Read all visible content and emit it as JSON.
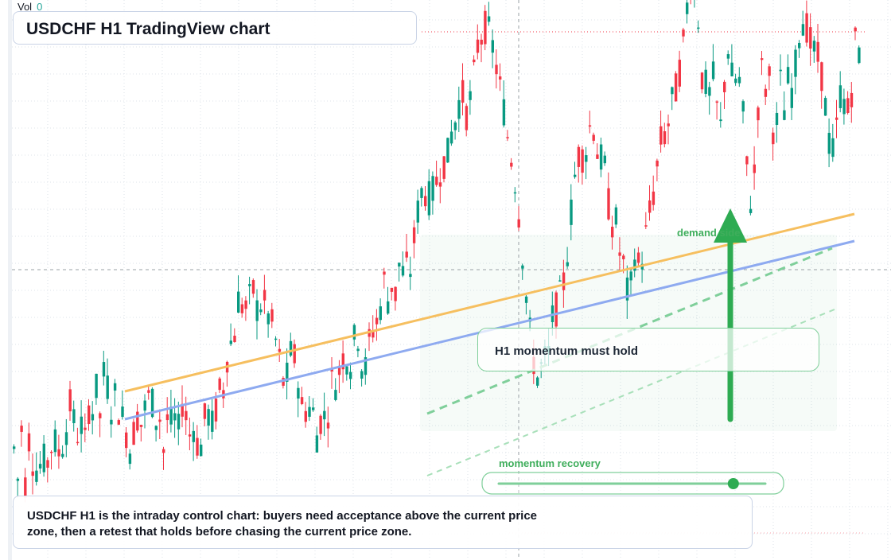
{
  "header": {
    "vol_label": "Vol",
    "vol_value": "0"
  },
  "title": "USDCHF H1 TradingView chart",
  "callout": "H1 momentum must hold",
  "demand_label": "demand side",
  "momentum_label": "momentum recovery",
  "description": "USDCHF H1 is the intraday control chart: buyers need acceptance above the current price zone, then a retest that holds before chasing the current price zone.",
  "colors": {
    "up": "#089981",
    "down": "#f23645",
    "grid": "#dde3ea",
    "orange_line": "#f6bf5f",
    "blue_line": "#8eaaf0",
    "green": "#2eab52",
    "green_soft": "#7fcf9a"
  },
  "momentum_slider": {
    "level": 0.88
  },
  "chart_data": {
    "type": "candlestick",
    "title": "",
    "price_ticks_visible": false,
    "grid": true,
    "candles": [
      [
        1.4,
        0.4,
        2.2,
        0.0
      ],
      [
        2.1,
        0.7,
        0.8,
        0.9
      ],
      [
        1.1,
        0.9,
        2.0,
        1.1
      ],
      [
        1.5,
        1.6,
        2.9,
        2.4
      ],
      [
        1.8,
        2.2,
        1.5,
        2.7
      ],
      [
        2.6,
        3.3,
        2.3,
        4.0
      ],
      [
        3.2,
        2.5,
        3.3,
        2.3
      ],
      [
        2.4,
        1.5,
        1.3,
        2.7
      ],
      [
        2.0,
        2.5,
        3.0,
        3.0
      ],
      [
        2.3,
        2.5,
        1.3,
        2.3
      ],
      [
        2.2,
        2.3,
        1.9,
        3.1
      ],
      [
        2.2,
        1.7,
        2.3,
        1.1
      ],
      [
        1.8,
        2.8,
        2.1,
        2.2
      ],
      [
        3.3,
        2.9,
        4.2,
        4.7
      ],
      [
        4.9,
        6.1,
        5.9,
        5.8
      ],
      [
        6.1,
        6.4,
        5.7,
        6.0
      ],
      [
        5.9,
        5.4,
        5.2,
        4.5
      ],
      [
        3.9,
        3.1,
        4.3,
        4.5
      ],
      [
        3.8,
        2.7,
        2.6,
        2.7
      ],
      [
        2.6,
        1.8,
        2.3,
        2.4
      ],
      [
        2.6,
        3.7,
        3.4,
        4.0
      ],
      [
        4.4,
        4.2,
        4.0,
        5.4
      ],
      [
        4.5,
        3.5,
        4.5,
        5.1
      ],
      [
        5.3,
        5.6,
        6.8,
        6.0
      ],
      [
        6.6,
        6.2,
        7.2,
        6.9
      ],
      [
        7.1,
        7.0,
        8.2,
        9.1
      ],
      [
        9.6,
        9.4,
        9.2,
        9.7
      ],
      [
        9.9,
        10.5,
        10.3,
        11.2
      ],
      [
        11.5,
        12.2,
        12.6,
        11.9
      ],
      [
        12.3,
        13.1,
        14.1,
        14.4
      ],
      [
        14.7,
        14.4,
        13.9,
        13.2
      ],
      [
        12.5,
        11.8,
        10.8,
        10.3
      ],
      [
        9.3,
        8.1,
        6.6,
        5.3
      ],
      [
        4.3,
        3.6,
        3.9,
        4.2
      ],
      [
        4.3,
        5.5,
        5.8,
        6.2
      ],
      [
        6.7,
        7.8,
        9.2,
        10.3
      ],
      [
        10.8,
        10.5,
        11.1,
        11.9
      ],
      [
        11.0,
        10.4,
        10.6,
        9.3
      ],
      [
        8.4,
        8.7,
        7.6,
        7.2
      ],
      [
        6.3,
        6.5,
        7.6,
        7.1
      ],
      [
        7.5,
        8.3,
        9.0,
        9.6
      ],
      [
        10.6,
        11.4,
        11.1,
        12.2
      ],
      [
        12.4,
        13.1,
        13.7,
        15.0
      ],
      [
        16.2,
        16.0,
        15.1,
        13.1
      ],
      [
        12.8,
        12.5,
        13.1,
        11.9
      ],
      [
        11.4,
        13.4,
        14.2,
        12.5
      ],
      [
        13.3,
        12.6,
        11.1,
        9.2
      ],
      [
        9.2,
        11.6,
        13.5,
        12.6
      ],
      [
        13.3,
        11.5,
        11.5,
        12.9
      ],
      [
        12.0,
        13.0,
        12.6,
        13.6
      ],
      [
        14.7,
        15.0,
        14.5,
        13.9
      ],
      [
        13.8,
        13.5,
        12.8,
        11.3
      ],
      [
        10.6,
        11.0,
        12.6,
        12.4
      ],
      [
        11.9,
        12.5,
        14.2,
        13.9
      ]
    ]
  }
}
